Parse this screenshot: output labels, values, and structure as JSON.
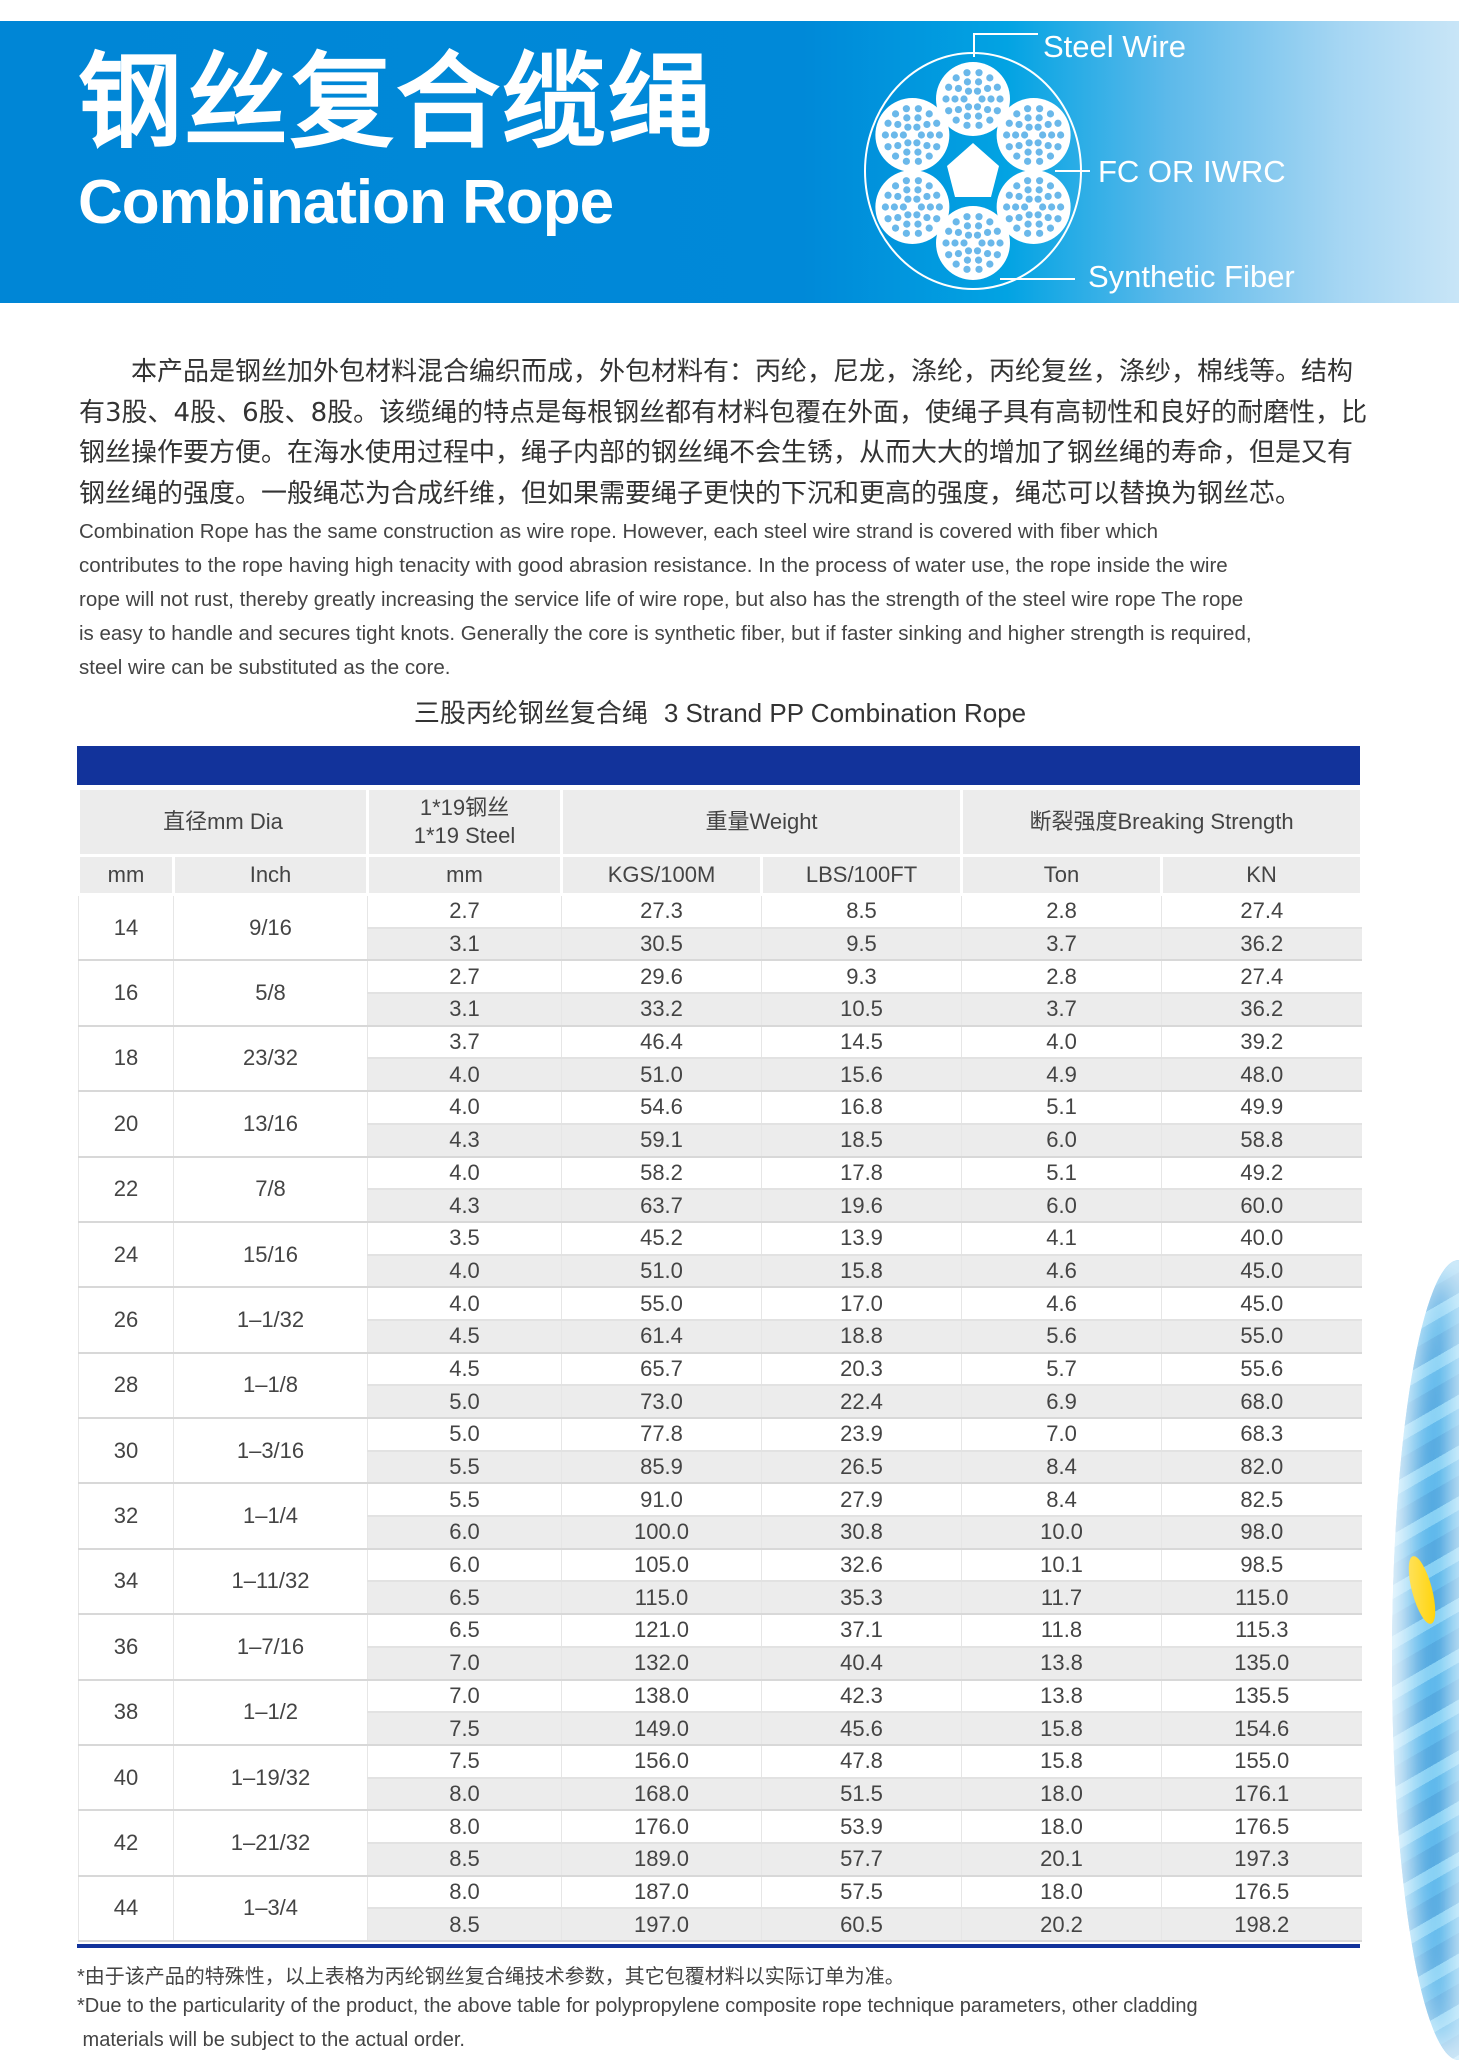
{
  "header": {
    "title_cn": "钢丝复合缆绳",
    "title_en": "Combination Rope",
    "diagram_labels": {
      "steel_wire": "Steel Wire",
      "core": "FC OR IWRC",
      "synthetic_fiber": "Synthetic Fiber"
    },
    "colors": {
      "banner": "#0088d8",
      "banner_light": "#c8e5f7",
      "table_bar": "#12339b"
    }
  },
  "description": {
    "cn_lines": [
      "　　本产品是钢丝加外包材料混合编织而成，外包材料有：丙纶，尼龙，涤纶，丙纶复丝，涤纱，棉线等。结构",
      "有3股、4股、6股、8股。该缆绳的特点是每根钢丝都有材料包覆在外面，使绳子具有高韧性和良好的耐磨性，比",
      "钢丝操作要方便。在海水使用过程中，绳子内部的钢丝绳不会生锈，从而大大的增加了钢丝绳的寿命，但是又有",
      "钢丝绳的强度。一般绳芯为合成纤维，但如果需要绳子更快的下沉和更高的强度，绳芯可以替换为钢丝芯。"
    ],
    "en_lines": [
      "Combination Rope has the same construction as wire rope. However, each steel wire strand is covered with fiber which",
      "contributes to the rope having high tenacity with good abrasion resistance. In the process of water use, the rope inside the wire",
      "rope will not rust, thereby greatly increasing the service life of wire rope, but also has the strength of the steel wire rope The rope",
      "is easy to handle and secures tight knots. Generally the core is synthetic fiber, but if faster sinking and higher strength is required,",
      "steel wire can be substituted as the core."
    ]
  },
  "table": {
    "title_cn": "三股丙纶钢丝复合绳",
    "title_en": "3 Strand PP Combination Rope",
    "headers": {
      "dia": "直径mm Dia",
      "steel_cn": "1*19钢丝",
      "steel_en": "1*19 Steel",
      "weight": "重量Weight",
      "strength": "断裂强度Breaking Strength"
    },
    "subheaders": [
      "mm",
      "Inch",
      "mm",
      "KGS/100M",
      "LBS/100FT",
      "Ton",
      "KN"
    ],
    "groups": [
      {
        "mm": "14",
        "inch": "9/16",
        "rows": [
          [
            "2.7",
            "27.3",
            "8.5",
            "2.8",
            "27.4"
          ],
          [
            "3.1",
            "30.5",
            "9.5",
            "3.7",
            "36.2"
          ]
        ]
      },
      {
        "mm": "16",
        "inch": "5/8",
        "rows": [
          [
            "2.7",
            "29.6",
            "9.3",
            "2.8",
            "27.4"
          ],
          [
            "3.1",
            "33.2",
            "10.5",
            "3.7",
            "36.2"
          ]
        ]
      },
      {
        "mm": "18",
        "inch": "23/32",
        "rows": [
          [
            "3.7",
            "46.4",
            "14.5",
            "4.0",
            "39.2"
          ],
          [
            "4.0",
            "51.0",
            "15.6",
            "4.9",
            "48.0"
          ]
        ]
      },
      {
        "mm": "20",
        "inch": "13/16",
        "rows": [
          [
            "4.0",
            "54.6",
            "16.8",
            "5.1",
            "49.9"
          ],
          [
            "4.3",
            "59.1",
            "18.5",
            "6.0",
            "58.8"
          ]
        ]
      },
      {
        "mm": "22",
        "inch": "7/8",
        "rows": [
          [
            "4.0",
            "58.2",
            "17.8",
            "5.1",
            "49.2"
          ],
          [
            "4.3",
            "63.7",
            "19.6",
            "6.0",
            "60.0"
          ]
        ]
      },
      {
        "mm": "24",
        "inch": "15/16",
        "rows": [
          [
            "3.5",
            "45.2",
            "13.9",
            "4.1",
            "40.0"
          ],
          [
            "4.0",
            "51.0",
            "15.8",
            "4.6",
            "45.0"
          ]
        ]
      },
      {
        "mm": "26",
        "inch": "1–1/32",
        "rows": [
          [
            "4.0",
            "55.0",
            "17.0",
            "4.6",
            "45.0"
          ],
          [
            "4.5",
            "61.4",
            "18.8",
            "5.6",
            "55.0"
          ]
        ]
      },
      {
        "mm": "28",
        "inch": "1–1/8",
        "rows": [
          [
            "4.5",
            "65.7",
            "20.3",
            "5.7",
            "55.6"
          ],
          [
            "5.0",
            "73.0",
            "22.4",
            "6.9",
            "68.0"
          ]
        ]
      },
      {
        "mm": "30",
        "inch": "1–3/16",
        "rows": [
          [
            "5.0",
            "77.8",
            "23.9",
            "7.0",
            "68.3"
          ],
          [
            "5.5",
            "85.9",
            "26.5",
            "8.4",
            "82.0"
          ]
        ]
      },
      {
        "mm": "32",
        "inch": "1–1/4",
        "rows": [
          [
            "5.5",
            "91.0",
            "27.9",
            "8.4",
            "82.5"
          ],
          [
            "6.0",
            "100.0",
            "30.8",
            "10.0",
            "98.0"
          ]
        ]
      },
      {
        "mm": "34",
        "inch": "1–11/32",
        "rows": [
          [
            "6.0",
            "105.0",
            "32.6",
            "10.1",
            "98.5"
          ],
          [
            "6.5",
            "115.0",
            "35.3",
            "11.7",
            "115.0"
          ]
        ]
      },
      {
        "mm": "36",
        "inch": "1–7/16",
        "rows": [
          [
            "6.5",
            "121.0",
            "37.1",
            "11.8",
            "115.3"
          ],
          [
            "7.0",
            "132.0",
            "40.4",
            "13.8",
            "135.0"
          ]
        ]
      },
      {
        "mm": "38",
        "inch": "1–1/2",
        "rows": [
          [
            "7.0",
            "138.0",
            "42.3",
            "13.8",
            "135.5"
          ],
          [
            "7.5",
            "149.0",
            "45.6",
            "15.8",
            "154.6"
          ]
        ]
      },
      {
        "mm": "40",
        "inch": "1–19/32",
        "rows": [
          [
            "7.5",
            "156.0",
            "47.8",
            "15.8",
            "155.0"
          ],
          [
            "8.0",
            "168.0",
            "51.5",
            "18.0",
            "176.1"
          ]
        ]
      },
      {
        "mm": "42",
        "inch": "1–21/32",
        "rows": [
          [
            "8.0",
            "176.0",
            "53.9",
            "18.0",
            "176.5"
          ],
          [
            "8.5",
            "189.0",
            "57.7",
            "20.1",
            "197.3"
          ]
        ]
      },
      {
        "mm": "44",
        "inch": "1–3/4",
        "rows": [
          [
            "8.0",
            "187.0",
            "57.5",
            "18.0",
            "176.5"
          ],
          [
            "8.5",
            "197.0",
            "60.5",
            "20.2",
            "198.2"
          ]
        ]
      }
    ]
  },
  "notes": {
    "cn": "*由于该产品的特殊性，以上表格为丙纶钢丝复合绳技术参数，其它包覆材料以实际订单为准。",
    "en_line1": "*Due to the particularity of the product, the above table for polypropylene composite rope technique parameters, other cladding",
    "en_line2": " materials will be subject to the actual order."
  }
}
